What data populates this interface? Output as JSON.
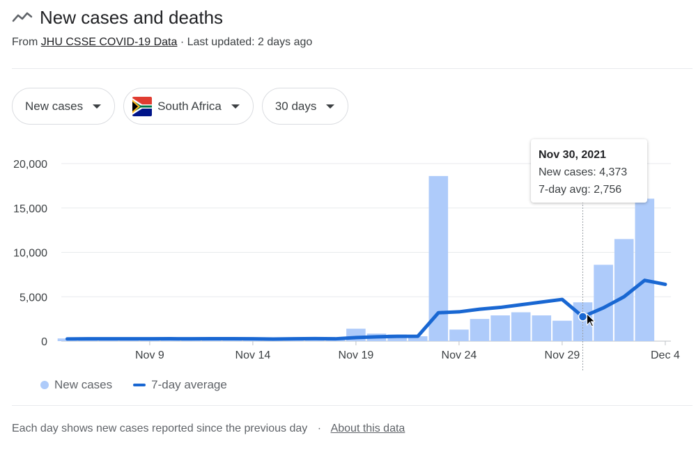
{
  "header": {
    "title": "New cases and deaths",
    "icon": "trending-icon",
    "source_prefix": "From",
    "source_link": "JHU CSSE COVID-19 Data",
    "updated": "· Last updated: 2 days ago"
  },
  "filters": [
    {
      "label": "New cases",
      "icon": "chevron-down-icon"
    },
    {
      "label": "South Africa",
      "icon": "south-africa-flag-icon"
    },
    {
      "label": "30 days",
      "icon": "chevron-down-icon"
    }
  ],
  "tooltip": {
    "date": "Nov 30, 2021",
    "new_cases": "New cases: 4,373",
    "avg": "7-day avg: 2,756"
  },
  "legend": {
    "cases": "New cases",
    "avg": "7-day average"
  },
  "footer": {
    "note": "Each day shows new cases reported since the previous day",
    "separator": "·",
    "link": "About this data"
  },
  "colors": {
    "bar": "#aecbfa",
    "line": "#1967d2",
    "grid": "#e8eaed",
    "text": "#3c4043"
  },
  "chart_data": {
    "type": "bar",
    "x": [
      "Nov 5",
      "Nov 6",
      "Nov 7",
      "Nov 8",
      "Nov 9",
      "Nov 10",
      "Nov 11",
      "Nov 12",
      "Nov 13",
      "Nov 14",
      "Nov 15",
      "Nov 16",
      "Nov 17",
      "Nov 18",
      "Nov 19",
      "Nov 20",
      "Nov 21",
      "Nov 22",
      "Nov 23",
      "Nov 24",
      "Nov 25",
      "Nov 26",
      "Nov 27",
      "Nov 28",
      "Nov 29",
      "Nov 30",
      "Dec 1",
      "Dec 2",
      "Dec 3",
      "Dec 4"
    ],
    "x_ticks": [
      "Nov 9",
      "Nov 14",
      "Nov 19",
      "Nov 24",
      "Nov 29",
      "Dec 4"
    ],
    "ylim": [
      0,
      20000
    ],
    "y_ticks": [
      0,
      5000,
      10000,
      15000,
      20000
    ],
    "y_tick_labels": [
      "0",
      "5,000",
      "10,000",
      "15,000",
      "20,000"
    ],
    "grid": true,
    "legend_position": "bottom-left",
    "highlight": {
      "date": "Nov 30",
      "new_cases": 4373,
      "avg": 2756
    },
    "series": [
      {
        "name": "New cases",
        "type": "bar",
        "values": [
          300,
          250,
          200,
          220,
          260,
          240,
          280,
          260,
          240,
          220,
          250,
          270,
          300,
          250,
          1400,
          850,
          750,
          550,
          18600,
          1300,
          2500,
          2900,
          3250,
          2900,
          2300,
          4373,
          8600,
          11500,
          16050,
          null
        ]
      },
      {
        "name": "7-day average",
        "type": "line",
        "values": [
          250,
          260,
          260,
          260,
          260,
          270,
          260,
          270,
          270,
          260,
          240,
          260,
          280,
          260,
          400,
          480,
          540,
          550,
          3200,
          3300,
          3600,
          3800,
          4100,
          4400,
          4700,
          2756,
          3750,
          5000,
          6850,
          6400
        ]
      }
    ]
  }
}
